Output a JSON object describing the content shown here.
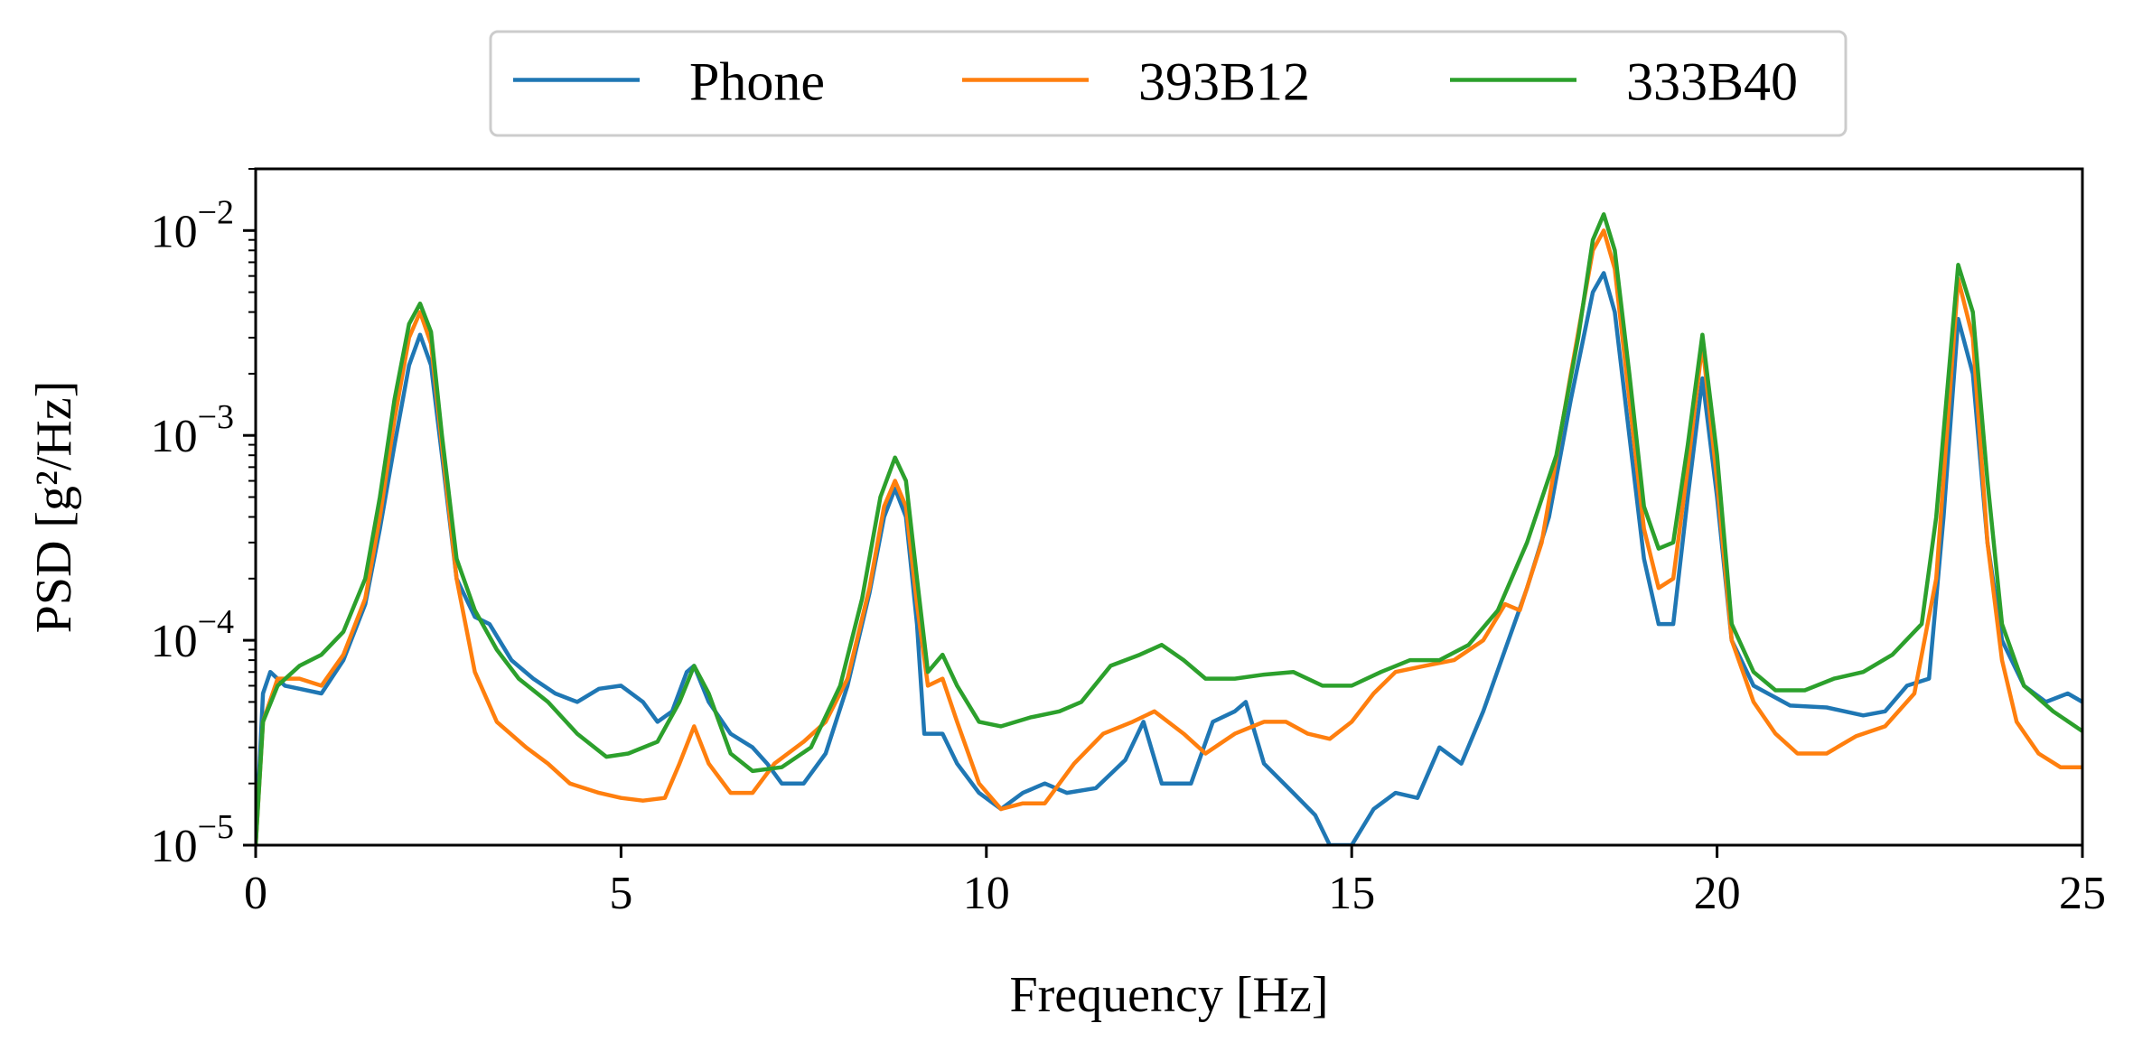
{
  "chart_data": {
    "type": "line",
    "title": "",
    "xlabel": "Frequency [Hz]",
    "ylabel": "PSD [g²/Hz]",
    "xlim": [
      0,
      25
    ],
    "ylim": [
      1e-05,
      0.02
    ],
    "yscale": "log",
    "grid": false,
    "legend_position": "top-center, above plot",
    "x_ticks": [
      {
        "value": 0,
        "label": "0"
      },
      {
        "value": 5,
        "label": "5"
      },
      {
        "value": 10,
        "label": "10"
      },
      {
        "value": 15,
        "label": "15"
      },
      {
        "value": 20,
        "label": "20"
      },
      {
        "value": 25,
        "label": "25"
      }
    ],
    "y_ticks": [
      {
        "value": 1e-05,
        "base": "10",
        "exp": "−5"
      },
      {
        "value": 0.0001,
        "base": "10",
        "exp": "−4"
      },
      {
        "value": 0.001,
        "base": "10",
        "exp": "−3"
      },
      {
        "value": 0.01,
        "base": "10",
        "exp": "−2"
      }
    ],
    "series": [
      {
        "name": "Phone",
        "color": "#1f77b4",
        "points": [
          [
            0,
            1e-05
          ],
          [
            0.1,
            5.5e-05
          ],
          [
            0.2,
            7e-05
          ],
          [
            0.4,
            6e-05
          ],
          [
            0.6,
            5.8e-05
          ],
          [
            0.9,
            5.5e-05
          ],
          [
            1.2,
            8e-05
          ],
          [
            1.5,
            0.00015
          ],
          [
            1.7,
            0.00035
          ],
          [
            1.9,
            0.0009
          ],
          [
            2.1,
            0.0022
          ],
          [
            2.25,
            0.0031
          ],
          [
            2.4,
            0.0022
          ],
          [
            2.55,
            0.0008
          ],
          [
            2.75,
            0.0002
          ],
          [
            3.0,
            0.00013
          ],
          [
            3.2,
            0.00012
          ],
          [
            3.5,
            8e-05
          ],
          [
            3.8,
            6.5e-05
          ],
          [
            4.1,
            5.5e-05
          ],
          [
            4.4,
            5e-05
          ],
          [
            4.7,
            5.8e-05
          ],
          [
            5.0,
            6e-05
          ],
          [
            5.3,
            5e-05
          ],
          [
            5.5,
            4e-05
          ],
          [
            5.7,
            4.5e-05
          ],
          [
            5.9,
            7e-05
          ],
          [
            6.0,
            7.5e-05
          ],
          [
            6.2,
            5e-05
          ],
          [
            6.5,
            3.5e-05
          ],
          [
            6.8,
            3e-05
          ],
          [
            7.0,
            2.5e-05
          ],
          [
            7.2,
            2e-05
          ],
          [
            7.5,
            2e-05
          ],
          [
            7.8,
            2.8e-05
          ],
          [
            8.1,
            6e-05
          ],
          [
            8.4,
            0.00017
          ],
          [
            8.6,
            0.0004
          ],
          [
            8.75,
            0.00055
          ],
          [
            8.9,
            0.0004
          ],
          [
            9.05,
            0.00012
          ],
          [
            9.15,
            3.5e-05
          ],
          [
            9.4,
            3.5e-05
          ],
          [
            9.6,
            2.5e-05
          ],
          [
            9.9,
            1.8e-05
          ],
          [
            10.2,
            1.5e-05
          ],
          [
            10.5,
            1.8e-05
          ],
          [
            10.8,
            2e-05
          ],
          [
            11.1,
            1.8e-05
          ],
          [
            11.5,
            1.9e-05
          ],
          [
            11.9,
            2.6e-05
          ],
          [
            12.15,
            4e-05
          ],
          [
            12.4,
            2e-05
          ],
          [
            12.8,
            2e-05
          ],
          [
            13.1,
            4e-05
          ],
          [
            13.4,
            4.5e-05
          ],
          [
            13.55,
            5e-05
          ],
          [
            13.8,
            2.5e-05
          ],
          [
            14.2,
            1.8e-05
          ],
          [
            14.5,
            1.4e-05
          ],
          [
            14.7,
            1e-05
          ],
          [
            15.0,
            1e-05
          ],
          [
            15.3,
            1.5e-05
          ],
          [
            15.6,
            1.8e-05
          ],
          [
            15.9,
            1.7e-05
          ],
          [
            16.2,
            3e-05
          ],
          [
            16.5,
            2.5e-05
          ],
          [
            16.8,
            4.5e-05
          ],
          [
            17.1,
            9e-05
          ],
          [
            17.4,
            0.00018
          ],
          [
            17.7,
            0.0004
          ],
          [
            18.0,
            0.0015
          ],
          [
            18.3,
            0.005
          ],
          [
            18.45,
            0.0062
          ],
          [
            18.6,
            0.004
          ],
          [
            18.8,
            0.001
          ],
          [
            19.0,
            0.00025
          ],
          [
            19.2,
            0.00012
          ],
          [
            19.4,
            0.00012
          ],
          [
            19.6,
            0.0005
          ],
          [
            19.8,
            0.0019
          ],
          [
            20.0,
            0.0005
          ],
          [
            20.2,
            0.0001
          ],
          [
            20.5,
            6e-05
          ],
          [
            21.0,
            4.8e-05
          ],
          [
            21.5,
            4.7e-05
          ],
          [
            22.0,
            4.3e-05
          ],
          [
            22.3,
            4.5e-05
          ],
          [
            22.6,
            6e-05
          ],
          [
            22.9,
            6.5e-05
          ],
          [
            23.1,
            0.0004
          ],
          [
            23.3,
            0.0037
          ],
          [
            23.5,
            0.002
          ],
          [
            23.7,
            0.0003
          ],
          [
            23.9,
            0.0001
          ],
          [
            24.2,
            6e-05
          ],
          [
            24.5,
            5e-05
          ],
          [
            24.8,
            5.5e-05
          ],
          [
            25.0,
            5e-05
          ]
        ]
      },
      {
        "name": "393B12",
        "color": "#ff7f0e",
        "points": [
          [
            0,
            1e-05
          ],
          [
            0.1,
            4e-05
          ],
          [
            0.3,
            6.5e-05
          ],
          [
            0.6,
            6.5e-05
          ],
          [
            0.9,
            6e-05
          ],
          [
            1.2,
            8.5e-05
          ],
          [
            1.5,
            0.00016
          ],
          [
            1.7,
            0.0004
          ],
          [
            1.9,
            0.0012
          ],
          [
            2.1,
            0.003
          ],
          [
            2.25,
            0.004
          ],
          [
            2.4,
            0.0028
          ],
          [
            2.55,
            0.0009
          ],
          [
            2.75,
            0.0002
          ],
          [
            3.0,
            7e-05
          ],
          [
            3.3,
            4e-05
          ],
          [
            3.7,
            3e-05
          ],
          [
            4.0,
            2.5e-05
          ],
          [
            4.3,
            2e-05
          ],
          [
            4.7,
            1.8e-05
          ],
          [
            5.0,
            1.7e-05
          ],
          [
            5.3,
            1.65e-05
          ],
          [
            5.6,
            1.7e-05
          ],
          [
            5.8,
            2.5e-05
          ],
          [
            6.0,
            3.8e-05
          ],
          [
            6.2,
            2.5e-05
          ],
          [
            6.5,
            1.8e-05
          ],
          [
            6.8,
            1.8e-05
          ],
          [
            7.1,
            2.5e-05
          ],
          [
            7.5,
            3.2e-05
          ],
          [
            7.8,
            4e-05
          ],
          [
            8.1,
            6.5e-05
          ],
          [
            8.4,
            0.00018
          ],
          [
            8.6,
            0.00045
          ],
          [
            8.75,
            0.0006
          ],
          [
            8.9,
            0.00045
          ],
          [
            9.05,
            0.00015
          ],
          [
            9.2,
            6e-05
          ],
          [
            9.4,
            6.5e-05
          ],
          [
            9.6,
            4e-05
          ],
          [
            9.9,
            2e-05
          ],
          [
            10.2,
            1.5e-05
          ],
          [
            10.5,
            1.6e-05
          ],
          [
            10.8,
            1.6e-05
          ],
          [
            11.2,
            2.5e-05
          ],
          [
            11.6,
            3.5e-05
          ],
          [
            12.0,
            4e-05
          ],
          [
            12.3,
            4.5e-05
          ],
          [
            12.7,
            3.5e-05
          ],
          [
            13.0,
            2.8e-05
          ],
          [
            13.4,
            3.5e-05
          ],
          [
            13.8,
            4e-05
          ],
          [
            14.1,
            4e-05
          ],
          [
            14.4,
            3.5e-05
          ],
          [
            14.7,
            3.3e-05
          ],
          [
            15.0,
            4e-05
          ],
          [
            15.3,
            5.5e-05
          ],
          [
            15.6,
            7e-05
          ],
          [
            16.0,
            7.5e-05
          ],
          [
            16.4,
            8e-05
          ],
          [
            16.8,
            0.0001
          ],
          [
            17.1,
            0.00015
          ],
          [
            17.3,
            0.00014
          ],
          [
            17.6,
            0.0003
          ],
          [
            18.0,
            0.002
          ],
          [
            18.3,
            0.008
          ],
          [
            18.45,
            0.01
          ],
          [
            18.6,
            0.0065
          ],
          [
            18.8,
            0.0015
          ],
          [
            19.0,
            0.00035
          ],
          [
            19.2,
            0.00018
          ],
          [
            19.4,
            0.0002
          ],
          [
            19.6,
            0.0007
          ],
          [
            19.8,
            0.0028
          ],
          [
            20.0,
            0.0006
          ],
          [
            20.2,
            0.0001
          ],
          [
            20.5,
            5e-05
          ],
          [
            20.8,
            3.5e-05
          ],
          [
            21.1,
            2.8e-05
          ],
          [
            21.5,
            2.8e-05
          ],
          [
            21.9,
            3.4e-05
          ],
          [
            22.3,
            3.8e-05
          ],
          [
            22.7,
            5.5e-05
          ],
          [
            23.0,
            0.0002
          ],
          [
            23.3,
            0.0058
          ],
          [
            23.5,
            0.003
          ],
          [
            23.7,
            0.0003
          ],
          [
            23.9,
            8e-05
          ],
          [
            24.1,
            4e-05
          ],
          [
            24.4,
            2.8e-05
          ],
          [
            24.7,
            2.4e-05
          ],
          [
            25.0,
            2.4e-05
          ]
        ]
      },
      {
        "name": "333B40",
        "color": "#2ca02c",
        "points": [
          [
            0,
            1e-05
          ],
          [
            0.1,
            4e-05
          ],
          [
            0.3,
            6e-05
          ],
          [
            0.6,
            7.5e-05
          ],
          [
            0.9,
            8.5e-05
          ],
          [
            1.2,
            0.00011
          ],
          [
            1.5,
            0.0002
          ],
          [
            1.7,
            0.0005
          ],
          [
            1.9,
            0.0015
          ],
          [
            2.1,
            0.0035
          ],
          [
            2.25,
            0.0044
          ],
          [
            2.4,
            0.0032
          ],
          [
            2.55,
            0.001
          ],
          [
            2.75,
            0.00025
          ],
          [
            3.0,
            0.00014
          ],
          [
            3.3,
            9e-05
          ],
          [
            3.6,
            6.5e-05
          ],
          [
            4.0,
            5e-05
          ],
          [
            4.4,
            3.5e-05
          ],
          [
            4.8,
            2.7e-05
          ],
          [
            5.1,
            2.8e-05
          ],
          [
            5.5,
            3.2e-05
          ],
          [
            5.8,
            5e-05
          ],
          [
            6.0,
            7.5e-05
          ],
          [
            6.2,
            5.5e-05
          ],
          [
            6.5,
            2.8e-05
          ],
          [
            6.8,
            2.3e-05
          ],
          [
            7.2,
            2.4e-05
          ],
          [
            7.6,
            3e-05
          ],
          [
            8.0,
            6e-05
          ],
          [
            8.3,
            0.00016
          ],
          [
            8.55,
            0.0005
          ],
          [
            8.75,
            0.00078
          ],
          [
            8.9,
            0.0006
          ],
          [
            9.05,
            0.0002
          ],
          [
            9.2,
            7e-05
          ],
          [
            9.4,
            8.5e-05
          ],
          [
            9.6,
            6e-05
          ],
          [
            9.9,
            4e-05
          ],
          [
            10.2,
            3.8e-05
          ],
          [
            10.6,
            4.2e-05
          ],
          [
            11.0,
            4.5e-05
          ],
          [
            11.3,
            5e-05
          ],
          [
            11.7,
            7.5e-05
          ],
          [
            12.1,
            8.5e-05
          ],
          [
            12.4,
            9.5e-05
          ],
          [
            12.7,
            8e-05
          ],
          [
            13.0,
            6.5e-05
          ],
          [
            13.4,
            6.5e-05
          ],
          [
            13.8,
            6.8e-05
          ],
          [
            14.2,
            7e-05
          ],
          [
            14.6,
            6e-05
          ],
          [
            15.0,
            6e-05
          ],
          [
            15.4,
            7e-05
          ],
          [
            15.8,
            8e-05
          ],
          [
            16.2,
            8e-05
          ],
          [
            16.6,
            9.5e-05
          ],
          [
            17.0,
            0.00014
          ],
          [
            17.4,
            0.0003
          ],
          [
            17.8,
            0.0008
          ],
          [
            18.1,
            0.003
          ],
          [
            18.3,
            0.009
          ],
          [
            18.45,
            0.012
          ],
          [
            18.6,
            0.008
          ],
          [
            18.8,
            0.002
          ],
          [
            19.0,
            0.00045
          ],
          [
            19.2,
            0.00028
          ],
          [
            19.4,
            0.0003
          ],
          [
            19.6,
            0.0009
          ],
          [
            19.8,
            0.0031
          ],
          [
            20.0,
            0.0008
          ],
          [
            20.2,
            0.00012
          ],
          [
            20.5,
            7e-05
          ],
          [
            20.8,
            5.7e-05
          ],
          [
            21.2,
            5.7e-05
          ],
          [
            21.6,
            6.5e-05
          ],
          [
            22.0,
            7e-05
          ],
          [
            22.4,
            8.5e-05
          ],
          [
            22.8,
            0.00012
          ],
          [
            23.0,
            0.0004
          ],
          [
            23.3,
            0.0068
          ],
          [
            23.5,
            0.004
          ],
          [
            23.7,
            0.0006
          ],
          [
            23.9,
            0.00012
          ],
          [
            24.2,
            6e-05
          ],
          [
            24.6,
            4.5e-05
          ],
          [
            25.0,
            3.6e-05
          ]
        ]
      }
    ]
  }
}
